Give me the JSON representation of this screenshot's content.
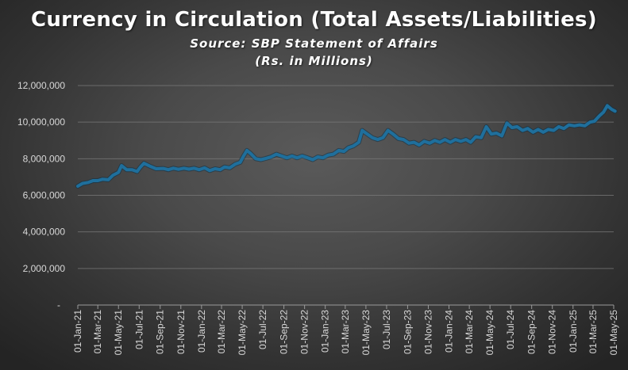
{
  "chart_data": {
    "type": "line",
    "title": "Currency in Circulation (Total Assets/Liabilities)",
    "subtitle": "Source: SBP Statement of Affairs",
    "units": "(Rs. in Millions)",
    "xlabel": "",
    "ylabel": "",
    "ylim": [
      0,
      12000000
    ],
    "yticks": [
      "-",
      "2,000,000",
      "4,000,000",
      "6,000,000",
      "8,000,000",
      "10,000,000",
      "12,000,000"
    ],
    "xticks": [
      "01-Jan-21",
      "01-Mar-21",
      "01-May-21",
      "01-Jul-21",
      "01-Sep-21",
      "01-Nov-21",
      "01-Jan-22",
      "01-Mar-22",
      "01-May-22",
      "01-Jul-22",
      "01-Sep-22",
      "01-Nov-22",
      "01-Jan-23",
      "01-Mar-23",
      "01-May-23",
      "01-Jul-23",
      "01-Sep-23",
      "01-Nov-23",
      "01-Jan-24",
      "01-Mar-24",
      "01-May-24",
      "01-Jul-24",
      "01-Sep-24",
      "01-Nov-24",
      "01-Jan-25",
      "01-Mar-25",
      "01-May-25"
    ],
    "grid": true,
    "legend": "none",
    "series": [
      {
        "color": "#1f6f9c",
        "points": [
          [
            "2021-01-01",
            6500000
          ],
          [
            "2021-01-15",
            6650000
          ],
          [
            "2021-02-01",
            6700000
          ],
          [
            "2021-02-15",
            6800000
          ],
          [
            "2021-03-01",
            6800000
          ],
          [
            "2021-03-15",
            6880000
          ],
          [
            "2021-04-01",
            6850000
          ],
          [
            "2021-04-15",
            7100000
          ],
          [
            "2021-05-01",
            7250000
          ],
          [
            "2021-05-10",
            7620000
          ],
          [
            "2021-05-25",
            7400000
          ],
          [
            "2021-06-10",
            7400000
          ],
          [
            "2021-06-25",
            7300000
          ],
          [
            "2021-07-05",
            7550000
          ],
          [
            "2021-07-15",
            7750000
          ],
          [
            "2021-08-01",
            7600000
          ],
          [
            "2021-08-20",
            7450000
          ],
          [
            "2021-09-10",
            7470000
          ],
          [
            "2021-09-25",
            7400000
          ],
          [
            "2021-10-10",
            7480000
          ],
          [
            "2021-10-25",
            7420000
          ],
          [
            "2021-11-10",
            7480000
          ],
          [
            "2021-11-25",
            7430000
          ],
          [
            "2021-12-10",
            7480000
          ],
          [
            "2021-12-25",
            7400000
          ],
          [
            "2022-01-10",
            7500000
          ],
          [
            "2022-01-25",
            7350000
          ],
          [
            "2022-02-10",
            7450000
          ],
          [
            "2022-02-25",
            7400000
          ],
          [
            "2022-03-10",
            7550000
          ],
          [
            "2022-03-25",
            7500000
          ],
          [
            "2022-04-10",
            7700000
          ],
          [
            "2022-04-25",
            7800000
          ],
          [
            "2022-05-05",
            8150000
          ],
          [
            "2022-05-15",
            8450000
          ],
          [
            "2022-05-25",
            8300000
          ],
          [
            "2022-06-10",
            8000000
          ],
          [
            "2022-06-25",
            7950000
          ],
          [
            "2022-07-10",
            8020000
          ],
          [
            "2022-07-25",
            8100000
          ],
          [
            "2022-08-10",
            8250000
          ],
          [
            "2022-08-25",
            8150000
          ],
          [
            "2022-09-10",
            8050000
          ],
          [
            "2022-09-25",
            8150000
          ],
          [
            "2022-10-10",
            8050000
          ],
          [
            "2022-10-25",
            8150000
          ],
          [
            "2022-11-10",
            8050000
          ],
          [
            "2022-11-25",
            7950000
          ],
          [
            "2022-12-10",
            8100000
          ],
          [
            "2022-12-25",
            8050000
          ],
          [
            "2023-01-10",
            8200000
          ],
          [
            "2023-01-25",
            8250000
          ],
          [
            "2023-02-10",
            8450000
          ],
          [
            "2023-02-25",
            8400000
          ],
          [
            "2023-03-10",
            8600000
          ],
          [
            "2023-03-25",
            8700000
          ],
          [
            "2023-04-10",
            8900000
          ],
          [
            "2023-04-20",
            9550000
          ],
          [
            "2023-05-05",
            9350000
          ],
          [
            "2023-05-20",
            9150000
          ],
          [
            "2023-06-05",
            9050000
          ],
          [
            "2023-06-20",
            9150000
          ],
          [
            "2023-07-05",
            9550000
          ],
          [
            "2023-07-20",
            9350000
          ],
          [
            "2023-08-05",
            9100000
          ],
          [
            "2023-08-20",
            9050000
          ],
          [
            "2023-09-05",
            8850000
          ],
          [
            "2023-09-20",
            8900000
          ],
          [
            "2023-10-05",
            8750000
          ],
          [
            "2023-10-20",
            8950000
          ],
          [
            "2023-11-05",
            8850000
          ],
          [
            "2023-11-20",
            9000000
          ],
          [
            "2023-12-05",
            8900000
          ],
          [
            "2023-12-20",
            9050000
          ],
          [
            "2024-01-05",
            8900000
          ],
          [
            "2024-01-20",
            9050000
          ],
          [
            "2024-02-05",
            8950000
          ],
          [
            "2024-02-20",
            9050000
          ],
          [
            "2024-03-05",
            8900000
          ],
          [
            "2024-03-20",
            9200000
          ],
          [
            "2024-04-05",
            9150000
          ],
          [
            "2024-04-20",
            9750000
          ],
          [
            "2024-05-05",
            9350000
          ],
          [
            "2024-05-20",
            9400000
          ],
          [
            "2024-06-05",
            9250000
          ],
          [
            "2024-06-20",
            9950000
          ],
          [
            "2024-07-05",
            9700000
          ],
          [
            "2024-07-20",
            9750000
          ],
          [
            "2024-08-05",
            9550000
          ],
          [
            "2024-08-20",
            9650000
          ],
          [
            "2024-09-05",
            9450000
          ],
          [
            "2024-09-20",
            9600000
          ],
          [
            "2024-10-05",
            9450000
          ],
          [
            "2024-10-20",
            9600000
          ],
          [
            "2024-11-05",
            9550000
          ],
          [
            "2024-11-20",
            9750000
          ],
          [
            "2024-12-05",
            9650000
          ],
          [
            "2024-12-20",
            9850000
          ],
          [
            "2025-01-05",
            9800000
          ],
          [
            "2025-01-20",
            9850000
          ],
          [
            "2025-02-05",
            9800000
          ],
          [
            "2025-02-20",
            10000000
          ],
          [
            "2025-03-05",
            10050000
          ],
          [
            "2025-03-20",
            10350000
          ],
          [
            "2025-04-01",
            10550000
          ],
          [
            "2025-04-12",
            10900000
          ],
          [
            "2025-04-25",
            10700000
          ],
          [
            "2025-05-05",
            10600000
          ]
        ]
      }
    ]
  }
}
